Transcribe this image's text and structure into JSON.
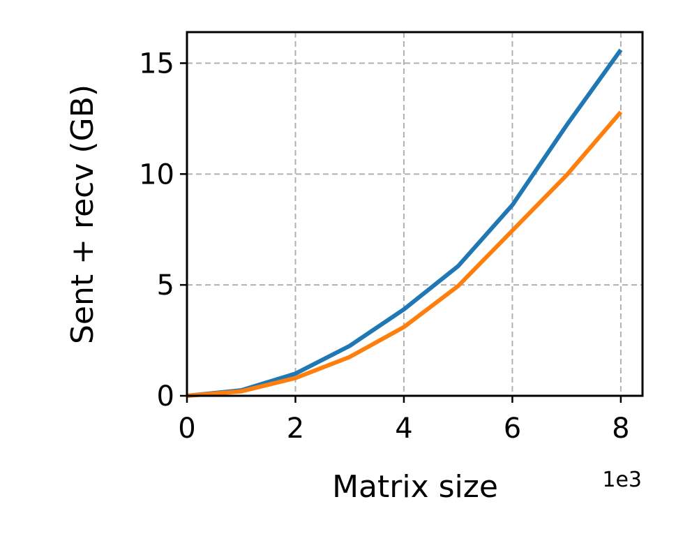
{
  "chart_data": {
    "type": "line",
    "xlabel": "Matrix size",
    "ylabel": "Sent + recv (GB)",
    "x_offset_label": "1e3",
    "xlim": [
      0,
      8.4
    ],
    "ylim": [
      0,
      16.4
    ],
    "xticks": [
      0,
      2,
      4,
      6,
      8
    ],
    "yticks": [
      0,
      5,
      10,
      15
    ],
    "grid": true,
    "legend": "none",
    "series": [
      {
        "color": "#1f77b4",
        "x": [
          0,
          1,
          2,
          3,
          4,
          5,
          6,
          7,
          8
        ],
        "y": [
          0,
          0.25,
          1.0,
          2.25,
          3.9,
          5.85,
          8.6,
          12.2,
          15.6
        ]
      },
      {
        "color": "#ff7f0e",
        "x": [
          0,
          1,
          2,
          3,
          4,
          5,
          6,
          7,
          8
        ],
        "y": [
          0,
          0.2,
          0.8,
          1.75,
          3.1,
          4.95,
          7.45,
          9.95,
          12.8
        ]
      }
    ]
  }
}
